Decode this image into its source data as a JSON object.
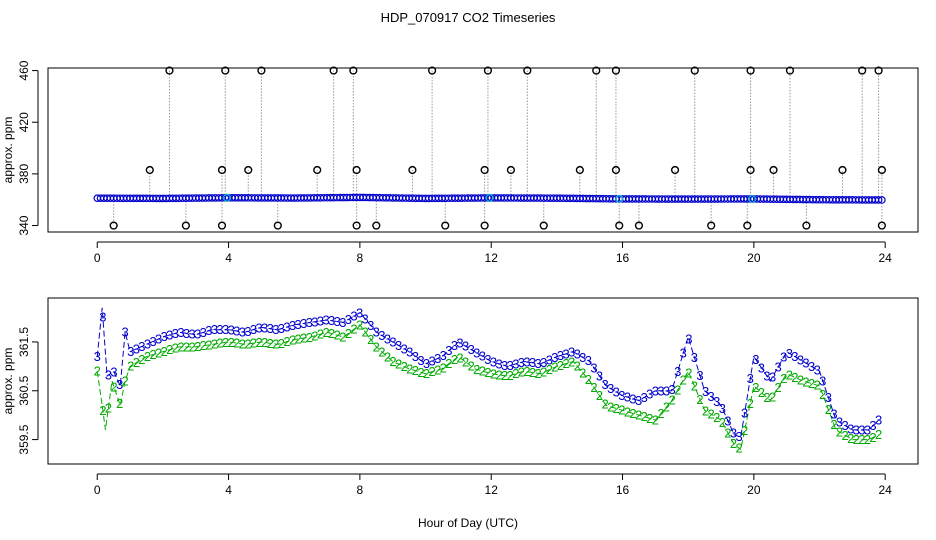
{
  "chart_data": [
    {
      "type": "scatter",
      "title": "HDP_070917  CO2 Timeseries",
      "xlabel": "",
      "ylabel": "approx. ppm",
      "xlim": [
        -1.5,
        25
      ],
      "ylim": [
        335,
        462
      ],
      "xticks": [
        "0",
        "4",
        "8",
        "12",
        "16",
        "20",
        "24"
      ],
      "yticks": [
        "340",
        "380",
        "420",
        "460"
      ],
      "baseline_series": {
        "name": "CO2 (blue circles)",
        "x_start": 0.0,
        "x_end": 23.9,
        "step": 0.1,
        "profile_x": [
          0,
          2,
          4,
          6,
          8,
          10,
          12,
          14,
          16,
          18,
          20,
          22,
          23.9
        ],
        "profile_y": [
          361.2,
          361.0,
          361.5,
          361.3,
          361.8,
          361.0,
          361.4,
          361.2,
          360.6,
          360.5,
          360.6,
          360.0,
          359.8
        ]
      },
      "spikes_high_460": [
        2.2,
        3.9,
        5.0,
        7.2,
        7.8,
        10.2,
        11.9,
        13.1,
        15.2,
        15.8,
        18.2,
        19.9,
        21.1,
        23.3,
        23.8
      ],
      "spikes_high_383": [
        1.6,
        3.8,
        4.6,
        6.7,
        7.9,
        9.6,
        11.8,
        12.6,
        14.7,
        15.8,
        17.6,
        19.9,
        20.6,
        22.7,
        23.9
      ],
      "spikes_low_340": [
        0.5,
        2.7,
        3.8,
        5.5,
        7.9,
        8.5,
        10.6,
        11.8,
        13.6,
        15.9,
        16.5,
        18.7,
        19.8,
        21.6,
        23.9
      ],
      "cyan_points": [
        3.95,
        11.95,
        15.9,
        19.95
      ]
    },
    {
      "type": "line",
      "title": "",
      "xlabel": "Hour of Day (UTC)",
      "ylabel": "approx. ppm",
      "xlim": [
        -1.5,
        25
      ],
      "ylim": [
        359.0,
        362.4
      ],
      "xticks": [
        "0",
        "4",
        "8",
        "12",
        "16",
        "20",
        "24"
      ],
      "yticks": [
        "359.5",
        "360.5",
        "361.5"
      ],
      "series": [
        {
          "name": "3",
          "color": "#0000cc",
          "x": [
            0.0,
            0.15,
            0.3,
            0.5,
            0.7,
            0.85,
            1.0,
            1.5,
            2.0,
            2.5,
            3.0,
            3.5,
            4.0,
            4.5,
            5.0,
            5.5,
            6.0,
            6.5,
            7.0,
            7.5,
            8.0,
            8.5,
            9.0,
            9.5,
            10.0,
            10.5,
            11.0,
            11.5,
            12.0,
            12.5,
            13.0,
            13.5,
            14.0,
            14.5,
            15.0,
            15.5,
            16.0,
            16.5,
            17.0,
            17.5,
            18.0,
            18.5,
            19.0,
            19.4,
            19.6,
            20.0,
            20.5,
            21.0,
            21.5,
            22.0,
            22.5,
            23.0,
            23.5,
            23.8
          ],
          "values": [
            361.2,
            362.2,
            360.8,
            360.9,
            360.6,
            361.7,
            361.3,
            361.45,
            361.6,
            361.7,
            361.65,
            361.75,
            361.75,
            361.7,
            361.8,
            361.75,
            361.85,
            361.9,
            361.95,
            361.9,
            362.1,
            361.7,
            361.5,
            361.3,
            361.05,
            361.2,
            361.5,
            361.3,
            361.1,
            361.0,
            361.1,
            361.05,
            361.2,
            361.3,
            361.1,
            360.6,
            360.4,
            360.3,
            360.5,
            360.5,
            361.6,
            360.5,
            360.2,
            359.6,
            359.55,
            361.2,
            360.7,
            361.3,
            361.1,
            360.9,
            359.9,
            359.7,
            359.7,
            359.9
          ]
        },
        {
          "name": "2",
          "color": "#00aa00",
          "x": [
            0.0,
            0.15,
            0.25,
            0.45,
            0.7,
            0.85,
            1.0,
            1.5,
            2.0,
            2.5,
            3.0,
            3.5,
            4.0,
            4.5,
            5.0,
            5.5,
            6.0,
            6.5,
            7.0,
            7.5,
            8.0,
            8.5,
            9.0,
            9.5,
            10.0,
            10.5,
            11.0,
            11.5,
            12.0,
            12.5,
            13.0,
            13.5,
            14.0,
            14.5,
            15.0,
            15.5,
            16.0,
            16.5,
            17.0,
            17.5,
            18.0,
            18.5,
            19.0,
            19.4,
            19.6,
            20.0,
            20.5,
            21.0,
            21.5,
            22.0,
            22.5,
            23.0,
            23.5,
            23.8
          ],
          "values": [
            360.9,
            360.2,
            359.7,
            360.7,
            360.2,
            360.7,
            361.0,
            361.2,
            361.3,
            361.4,
            361.4,
            361.45,
            361.5,
            361.45,
            361.5,
            361.45,
            361.55,
            361.6,
            361.7,
            361.6,
            361.85,
            361.4,
            361.1,
            360.95,
            360.85,
            360.95,
            361.2,
            360.95,
            360.85,
            360.8,
            360.9,
            360.85,
            361.0,
            361.1,
            360.7,
            360.2,
            360.1,
            360.0,
            359.9,
            360.3,
            360.9,
            360.1,
            359.9,
            359.4,
            359.3,
            360.6,
            360.3,
            360.85,
            360.7,
            360.6,
            359.7,
            359.5,
            359.5,
            359.6
          ]
        }
      ]
    }
  ]
}
